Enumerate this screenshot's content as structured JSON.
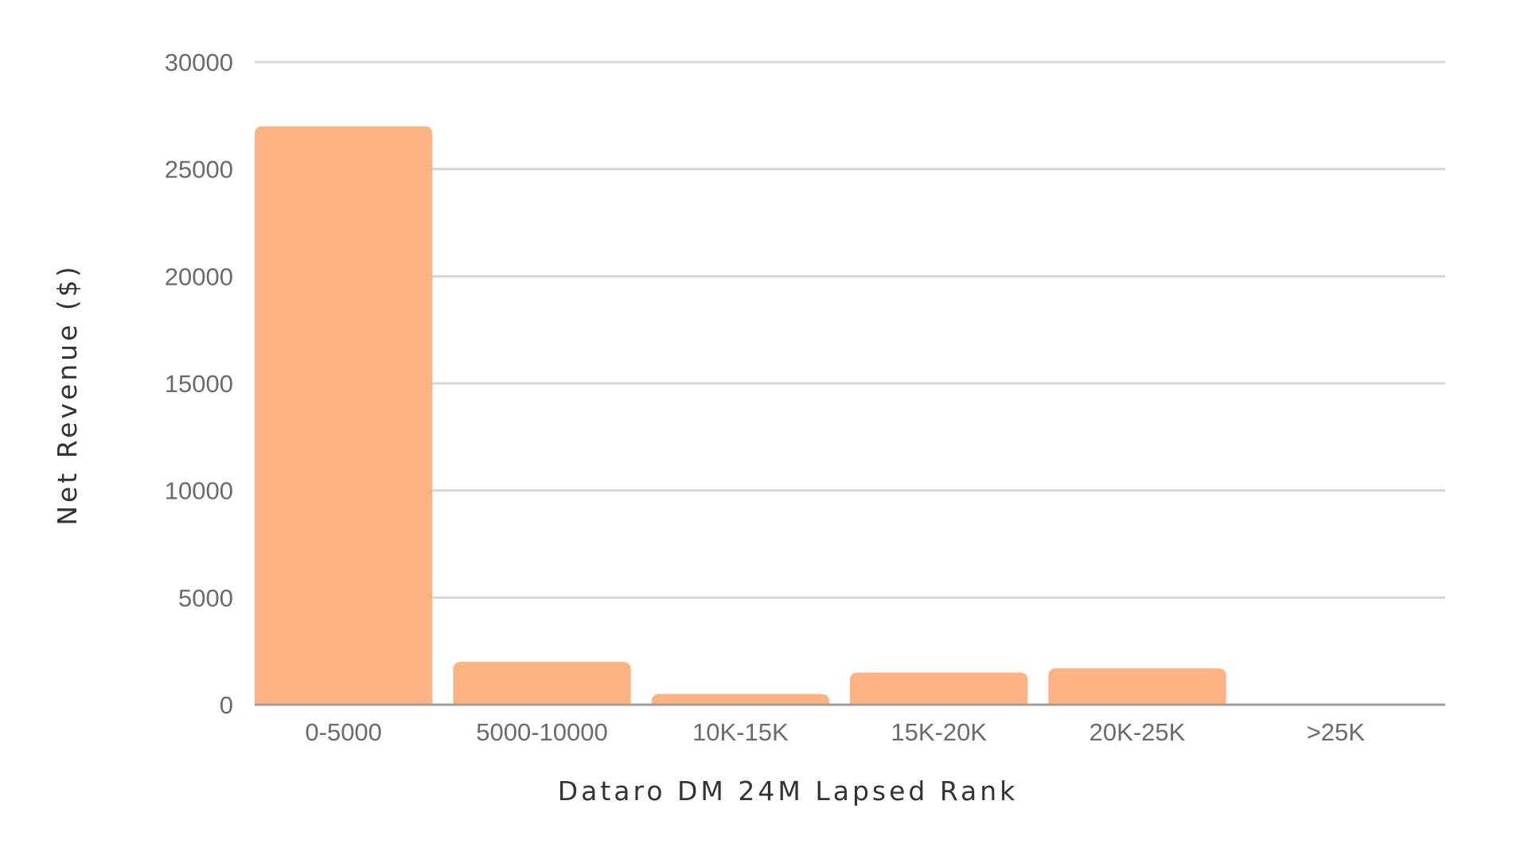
{
  "chart_data": {
    "type": "bar",
    "title": "",
    "xlabel": "Dataro DM 24M Lapsed Rank",
    "ylabel": "Net Revenue ($)",
    "categories": [
      "0-5000",
      "5000-10000",
      "10K-15K",
      "15K-20K",
      "20K-25K",
      ">25K"
    ],
    "values": [
      27000,
      2000,
      500,
      1500,
      1700,
      0
    ],
    "ylim": [
      0,
      30000
    ],
    "yticks": [
      "0",
      "5000",
      "10000",
      "15000",
      "20000",
      "25000",
      "30000"
    ],
    "grid": true,
    "legend": "none",
    "colors": {
      "bar": "#FDB384",
      "grid": "#d6d6d6",
      "axis": "#9e9e9e"
    }
  }
}
